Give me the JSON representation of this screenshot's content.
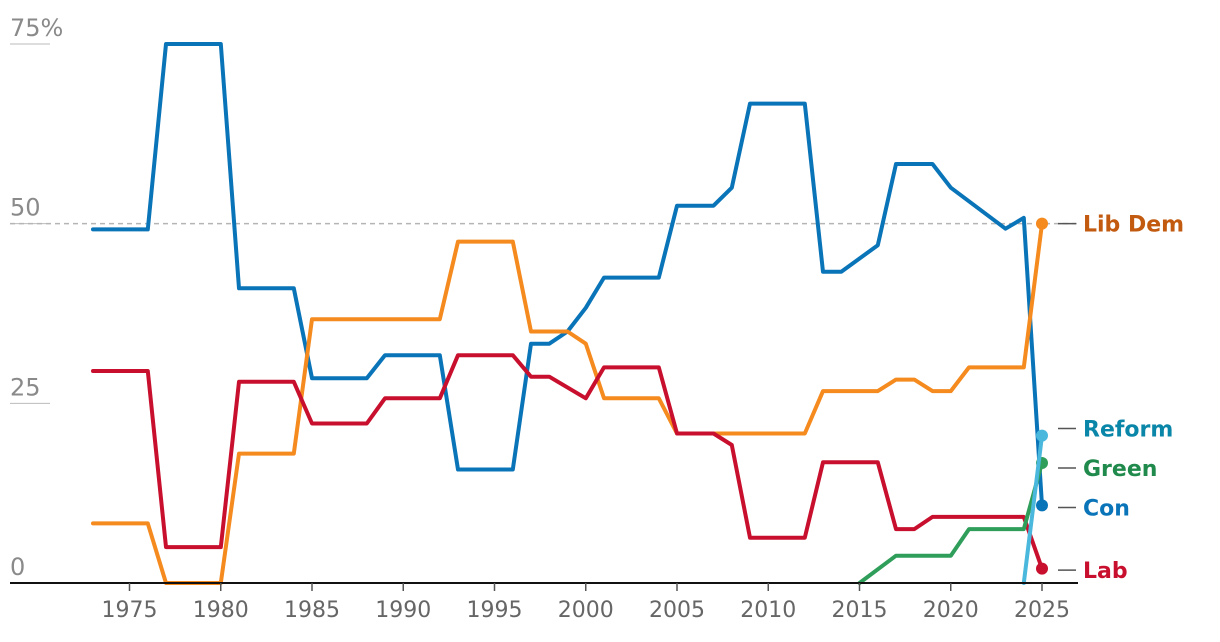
{
  "chart_data": {
    "type": "line",
    "ylim": [
      0,
      75
    ],
    "xlim": [
      1971,
      2027
    ],
    "yticks": [
      {
        "value": 0,
        "label": "0"
      },
      {
        "value": 25,
        "label": "25"
      },
      {
        "value": 50,
        "label": "50"
      },
      {
        "value": 75,
        "label": "75%"
      }
    ],
    "xticks": [
      {
        "value": 1975,
        "label": "1975"
      },
      {
        "value": 1980,
        "label": "1980"
      },
      {
        "value": 1985,
        "label": "1985"
      },
      {
        "value": 1990,
        "label": "1990"
      },
      {
        "value": 1995,
        "label": "1995"
      },
      {
        "value": 2000,
        "label": "2000"
      },
      {
        "value": 2005,
        "label": "2005"
      },
      {
        "value": 2010,
        "label": "2010"
      },
      {
        "value": 2015,
        "label": "2015"
      },
      {
        "value": 2020,
        "label": "2020"
      },
      {
        "value": 2025,
        "label": "2025"
      }
    ],
    "reference_line": 50,
    "series": [
      {
        "name": "Con",
        "color": "#0a74b8",
        "label_color": "#0a74b8",
        "points": [
          [
            1973,
            49.2
          ],
          [
            1976,
            49.2
          ],
          [
            1977,
            75
          ],
          [
            1980,
            75
          ],
          [
            1981,
            41
          ],
          [
            1984,
            41
          ],
          [
            1985,
            28.5
          ],
          [
            1988,
            28.5
          ],
          [
            1989,
            31.7
          ],
          [
            1992,
            31.7
          ],
          [
            1993,
            15.8
          ],
          [
            1996,
            15.8
          ],
          [
            1997,
            33.3
          ],
          [
            1998,
            33.3
          ],
          [
            1999,
            35
          ],
          [
            2000,
            38.3
          ],
          [
            2001,
            42.5
          ],
          [
            2004,
            42.5
          ],
          [
            2005,
            52.5
          ],
          [
            2007,
            52.5
          ],
          [
            2008,
            55
          ],
          [
            2009,
            66.7
          ],
          [
            2012,
            66.7
          ],
          [
            2013,
            43.3
          ],
          [
            2014,
            43.3
          ],
          [
            2016,
            47
          ],
          [
            2017,
            58.3
          ],
          [
            2019,
            58.3
          ],
          [
            2020,
            55
          ],
          [
            2023,
            49.3
          ],
          [
            2024,
            50.8
          ],
          [
            2025,
            10.8
          ]
        ],
        "end_value": 10.8
      },
      {
        "name": "Lib Dem",
        "color": "#f58a1f",
        "label_color": "#c25a0f",
        "points": [
          [
            1973,
            8.3
          ],
          [
            1976,
            8.3
          ],
          [
            1977,
            0
          ],
          [
            1980,
            0
          ],
          [
            1981,
            18
          ],
          [
            1984,
            18
          ],
          [
            1985,
            36.7
          ],
          [
            1992,
            36.7
          ],
          [
            1993,
            47.5
          ],
          [
            1996,
            47.5
          ],
          [
            1997,
            35
          ],
          [
            1999,
            35
          ],
          [
            2000,
            33.3
          ],
          [
            2001,
            25.7
          ],
          [
            2004,
            25.7
          ],
          [
            2005,
            20.8
          ],
          [
            2012,
            20.8
          ],
          [
            2013,
            26.7
          ],
          [
            2016,
            26.7
          ],
          [
            2017,
            28.3
          ],
          [
            2018,
            28.3
          ],
          [
            2019,
            26.7
          ],
          [
            2020,
            26.7
          ],
          [
            2021,
            30
          ],
          [
            2024,
            30
          ],
          [
            2025,
            50
          ]
        ],
        "end_value": 50
      },
      {
        "name": "Lab",
        "color": "#c8102e",
        "label_color": "#c8102e",
        "points": [
          [
            1973,
            29.5
          ],
          [
            1976,
            29.5
          ],
          [
            1977,
            5
          ],
          [
            1980,
            5
          ],
          [
            1981,
            28
          ],
          [
            1984,
            28
          ],
          [
            1985,
            22.2
          ],
          [
            1988,
            22.2
          ],
          [
            1989,
            25.7
          ],
          [
            1992,
            25.7
          ],
          [
            1993,
            31.7
          ],
          [
            1996,
            31.7
          ],
          [
            1997,
            28.7
          ],
          [
            1998,
            28.7
          ],
          [
            2000,
            25.7
          ],
          [
            2001,
            30
          ],
          [
            2004,
            30
          ],
          [
            2005,
            20.8
          ],
          [
            2007,
            20.8
          ],
          [
            2008,
            19.2
          ],
          [
            2009,
            6.3
          ],
          [
            2012,
            6.3
          ],
          [
            2013,
            16.8
          ],
          [
            2016,
            16.8
          ],
          [
            2017,
            7.5
          ],
          [
            2018,
            7.5
          ],
          [
            2019,
            9.2
          ],
          [
            2024,
            9.2
          ],
          [
            2025,
            2
          ]
        ],
        "end_value": 2
      },
      {
        "name": "Green",
        "color": "#2f9e5a",
        "label_color": "#1f8a4c",
        "points": [
          [
            2015,
            0
          ],
          [
            2017,
            3.8
          ],
          [
            2020,
            3.8
          ],
          [
            2021,
            7.5
          ],
          [
            2024,
            7.5
          ],
          [
            2025,
            16.7
          ]
        ],
        "end_value": 16.7
      },
      {
        "name": "Reform",
        "color": "#4ab8dc",
        "label_color": "#0a86a8",
        "points": [
          [
            2024,
            0
          ],
          [
            2025,
            20.5
          ]
        ],
        "end_value": 20.5
      }
    ],
    "labels": [
      {
        "series": "Lib Dem",
        "text": "Lib Dem",
        "y": 50
      },
      {
        "series": "Reform",
        "text": "Reform",
        "y": 21.5
      },
      {
        "series": "Green",
        "text": "Green",
        "y": 16
      },
      {
        "series": "Con",
        "text": "Con",
        "y": 10.5
      },
      {
        "series": "Lab",
        "text": "Lab",
        "y": 1.8
      }
    ]
  }
}
